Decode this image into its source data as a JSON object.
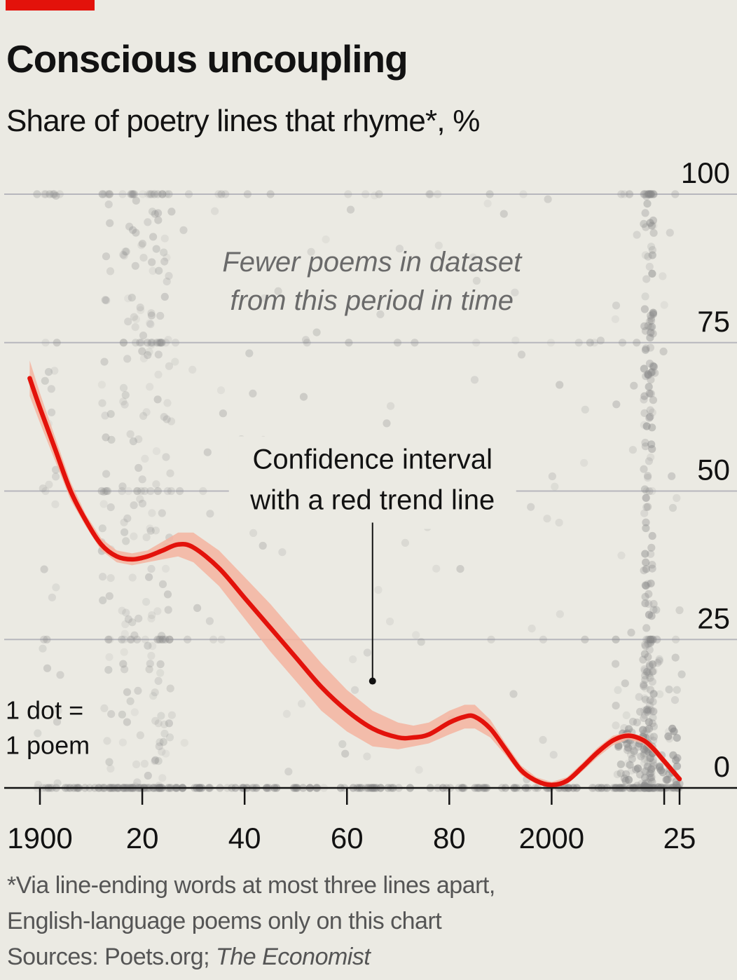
{
  "title": "Conscious uncoupling",
  "subtitle": "Share of poetry lines that rhyme*, %",
  "colors": {
    "background": "#ebeae3",
    "brand_red": "#e3120b",
    "trend_line": "#e3120b",
    "confidence_band": "#f4b4a0",
    "dot": "#8a8a8a",
    "gridline": "#b7b7bd",
    "baseline": "#121212"
  },
  "chart_data": {
    "type": "scatter",
    "x_range": [
      1897,
      2026
    ],
    "ylim": [
      0,
      100
    ],
    "y_axis_side": "right",
    "grid": true,
    "x_ticks": [
      {
        "value": 1900,
        "label": "1900"
      },
      {
        "value": 1920,
        "label": "20"
      },
      {
        "value": 1940,
        "label": "40"
      },
      {
        "value": 1960,
        "label": "60"
      },
      {
        "value": 1980,
        "label": "80"
      },
      {
        "value": 2000,
        "label": "2000"
      },
      {
        "value": 2025,
        "label": "25"
      }
    ],
    "y_ticks": [
      {
        "value": 0,
        "label": "0"
      },
      {
        "value": 25,
        "label": "25"
      },
      {
        "value": 50,
        "label": "50"
      },
      {
        "value": 75,
        "label": "75"
      },
      {
        "value": 100,
        "label": "100"
      }
    ],
    "legend_note": {
      "line1": "1 dot =",
      "line2": "1 poem"
    },
    "annotations": {
      "sparse_period": {
        "line1": "Fewer poems in dataset",
        "line2": "from this period in time",
        "x": 1965,
        "y": 87
      },
      "band": {
        "line1": "Confidence interval",
        "line2": "with a red trend line",
        "x": 1965,
        "y": 50,
        "pointer_to": [
          1965,
          18
        ]
      }
    },
    "trend_line": {
      "x": [
        1898,
        1900,
        1903,
        1906,
        1909,
        1912,
        1915,
        1918,
        1921,
        1924,
        1927,
        1930,
        1935,
        1940,
        1945,
        1950,
        1955,
        1960,
        1965,
        1970,
        1973,
        1976,
        1980,
        1983,
        1985,
        1988,
        1991,
        1994,
        1997,
        2000,
        2003,
        2006,
        2009,
        2012,
        2015,
        2018,
        2020,
        2022,
        2024,
        2025
      ],
      "y": [
        69,
        64,
        57,
        50,
        45,
        41,
        39,
        38.5,
        39,
        40,
        41,
        40.5,
        37,
        32,
        27,
        22,
        17,
        13,
        10,
        8.5,
        8.5,
        9,
        11,
        12,
        12,
        10,
        6.5,
        3,
        1.2,
        0.5,
        1.2,
        3.5,
        6,
        8,
        8.8,
        8,
        6.5,
        4.5,
        2.5,
        1.5
      ]
    },
    "confidence_band": {
      "x": [
        1898,
        1900,
        1903,
        1906,
        1909,
        1912,
        1915,
        1918,
        1921,
        1924,
        1927,
        1930,
        1935,
        1940,
        1945,
        1950,
        1955,
        1960,
        1965,
        1970,
        1973,
        1976,
        1980,
        1983,
        1985,
        1988,
        1991,
        1994,
        1997,
        2000,
        2003,
        2006,
        2009,
        2012,
        2015,
        2018,
        2020,
        2022,
        2024,
        2025
      ],
      "lower": [
        66,
        61.5,
        55,
        48.5,
        44,
        40,
        38,
        37.5,
        38,
        38.5,
        39,
        38,
        34,
        28.5,
        23,
        18,
        13,
        9.5,
        7,
        6.5,
        7,
        7.5,
        9,
        10,
        10,
        8.5,
        5.5,
        2.2,
        0.6,
        0,
        0.6,
        2.8,
        5.2,
        7.2,
        8.2,
        7.4,
        5.8,
        3.8,
        1.9,
        1.0
      ],
      "upper": [
        72,
        66.5,
        59,
        51.5,
        46,
        42,
        40,
        39.5,
        40,
        41.5,
        43,
        43,
        40,
        35.5,
        31,
        26,
        21,
        16.5,
        13,
        11,
        10.5,
        11,
        13,
        14,
        14,
        11.5,
        7.5,
        3.8,
        1.8,
        1.0,
        1.8,
        4.2,
        6.8,
        8.8,
        9.4,
        8.6,
        7.2,
        5.2,
        3.1,
        2.0
      ]
    }
  },
  "footnote": {
    "line1": "*Via line-ending words at most three lines apart,",
    "line2": "English-language poems only on this chart",
    "sources_prefix": "Sources: Poets.org; ",
    "sources_italic": "The Economist"
  }
}
